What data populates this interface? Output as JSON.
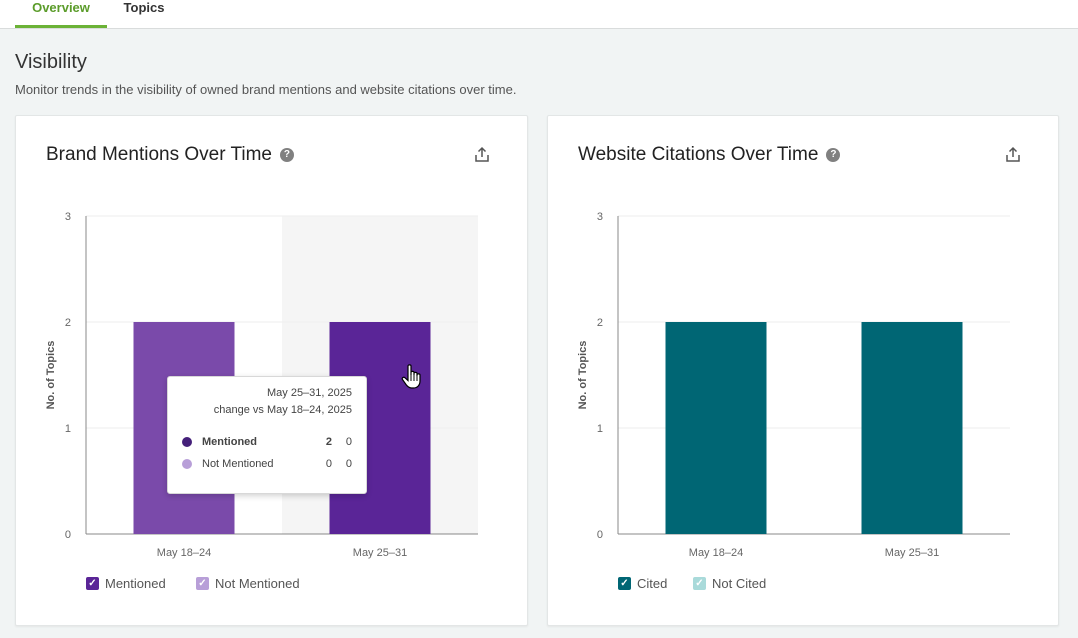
{
  "tabs": [
    {
      "label": "Overview",
      "active": true
    },
    {
      "label": "Topics",
      "active": false
    }
  ],
  "section": {
    "title": "Visibility",
    "description": "Monitor trends in the visibility of owned brand mentions and website citations over time."
  },
  "icons": {
    "help": "question-circle-icon",
    "export": "share-export-icon",
    "check": "checkmark-icon",
    "cursor": "hand-pointer-icon"
  },
  "brand_card": {
    "title": "Brand Mentions Over Time",
    "legend": [
      {
        "label": "Mentioned",
        "color": "#5a2597"
      },
      {
        "label": "Not Mentioned",
        "color": "#b89fd8"
      }
    ],
    "tooltip": {
      "date": "May 25–31, 2025",
      "change": "change vs May 18–24, 2025",
      "rows": [
        {
          "label": "Mentioned",
          "value": "2",
          "change": "0",
          "color": "#45207a"
        },
        {
          "label": "Not Mentioned",
          "value": "0",
          "change": "0",
          "color": "#b89fd8"
        }
      ]
    }
  },
  "web_card": {
    "title": "Website Citations Over Time",
    "legend": [
      {
        "label": "Cited",
        "color": "#006674"
      },
      {
        "label": "Not Cited",
        "color": "#a9dada"
      }
    ]
  },
  "chart_data": [
    {
      "type": "bar",
      "title": "Brand Mentions Over Time",
      "ylabel": "No. of Topics",
      "xlabel": "",
      "categories": [
        "May 18–24",
        "May 25–31"
      ],
      "series": [
        {
          "name": "Mentioned",
          "values": [
            2,
            2
          ],
          "colors": [
            "#7a4aaa",
            "#5a2597"
          ]
        },
        {
          "name": "Not Mentioned",
          "values": [
            0,
            0
          ]
        }
      ],
      "ylim": [
        0,
        3
      ],
      "yticks": [
        "0",
        "1",
        "2",
        "3"
      ],
      "highlighted_category": "May 25–31",
      "grid": true
    },
    {
      "type": "bar",
      "title": "Website Citations Over Time",
      "ylabel": "No. of Topics",
      "xlabel": "",
      "categories": [
        "May 18–24",
        "May 25–31"
      ],
      "series": [
        {
          "name": "Cited",
          "values": [
            2,
            2
          ],
          "colors": [
            "#006674",
            "#006674"
          ]
        },
        {
          "name": "Not Cited",
          "values": [
            0,
            0
          ]
        }
      ],
      "ylim": [
        0,
        3
      ],
      "yticks": [
        "0",
        "1",
        "2",
        "3"
      ],
      "grid": true
    }
  ]
}
